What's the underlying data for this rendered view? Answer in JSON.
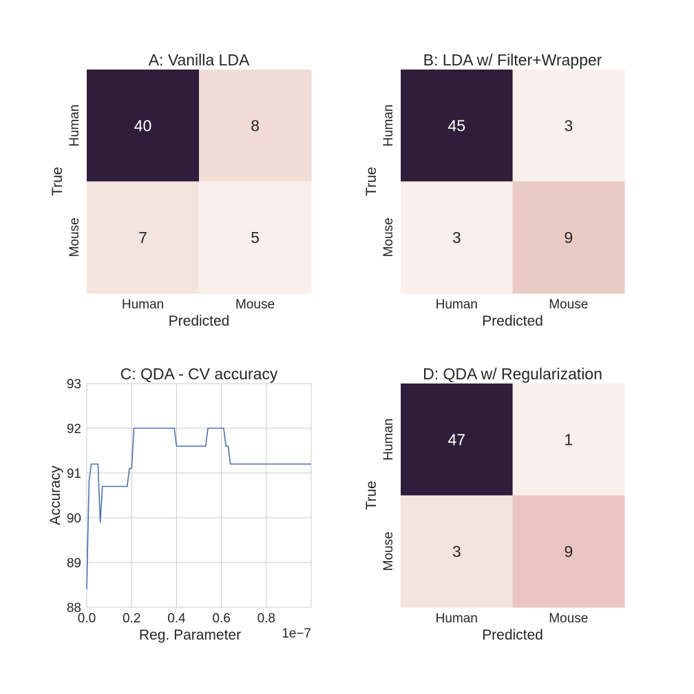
{
  "colors": {
    "dark": "#2e1e3b",
    "light": "#f9efeb",
    "line": "#4c72b0",
    "grid": "#cbcbcb",
    "text": "#262626",
    "cell_text_dark": "#ffffff",
    "cell_text_light": "#262626"
  },
  "chart_data": [
    {
      "type": "heatmap",
      "title": "A: Vanilla LDA",
      "xlabel": "Predicted",
      "ylabel": "True",
      "row_labels": [
        "Human",
        "Mouse"
      ],
      "col_labels": [
        "Human",
        "Mouse"
      ],
      "values": [
        [
          40,
          8
        ],
        [
          7,
          5
        ]
      ],
      "cell_labels": [
        [
          "40",
          "8"
        ],
        [
          "7",
          "5"
        ]
      ],
      "cell_colors": [
        [
          "#2e1e3b",
          "#f1ddd6"
        ],
        [
          "#f4e4de",
          "#f9efeb"
        ]
      ]
    },
    {
      "type": "heatmap",
      "title": "B: LDA w/ Filter+Wrapper",
      "xlabel": "Predicted",
      "ylabel": "True",
      "row_labels": [
        "Human",
        "Mouse"
      ],
      "col_labels": [
        "Human",
        "Mouse"
      ],
      "values": [
        [
          45,
          3
        ],
        [
          3,
          9
        ]
      ],
      "cell_labels": [
        [
          "45",
          "3"
        ],
        [
          "3",
          "9"
        ]
      ],
      "cell_colors": [
        [
          "#2e1e3b",
          "#f9efeb"
        ],
        [
          "#f9efeb",
          "#ebcac5"
        ]
      ]
    },
    {
      "type": "line",
      "title": "C: QDA - CV accuracy",
      "xlabel": "Reg. Parameter",
      "ylabel": "Accuracy",
      "x_offset_label": "1e−7",
      "xlim": [
        0,
        1e-07
      ],
      "ylim": [
        88,
        93
      ],
      "xticks": [
        0,
        2e-08,
        4e-08,
        6e-08,
        8e-08
      ],
      "xtick_labels": [
        "0.0",
        "0.2",
        "0.4",
        "0.6",
        "0.8"
      ],
      "yticks": [
        88,
        89,
        90,
        91,
        92,
        93
      ],
      "ytick_labels": [
        "88",
        "89",
        "90",
        "91",
        "92",
        "93"
      ],
      "grid": true,
      "series": [
        {
          "x": [
            0,
            1e-09,
            2e-09,
            3e-09,
            4e-09,
            5e-09,
            6e-09,
            7e-09,
            8e-09,
            1e-08,
            1.2e-08,
            1.4e-08,
            1.6e-08,
            1.8e-08,
            1.9e-08,
            2e-08,
            2.1e-08,
            2.5e-08,
            3e-08,
            3.5e-08,
            3.9e-08,
            4e-08,
            4.5e-08,
            5e-08,
            5.3e-08,
            5.4e-08,
            5.7e-08,
            6.1e-08,
            6.2e-08,
            6.3e-08,
            6.4e-08,
            7e-08,
            8e-08,
            9e-08,
            1e-07
          ],
          "y": [
            88.4,
            90.8,
            91.2,
            91.2,
            91.2,
            91.2,
            89.9,
            90.7,
            90.7,
            90.7,
            90.7,
            90.7,
            90.7,
            90.7,
            91.1,
            91.1,
            92.0,
            92.0,
            92.0,
            92.0,
            92.0,
            91.6,
            91.6,
            91.6,
            91.6,
            92.0,
            92.0,
            92.0,
            91.6,
            91.6,
            91.2,
            91.2,
            91.2,
            91.2,
            91.2
          ]
        }
      ]
    },
    {
      "type": "heatmap",
      "title": "D: QDA w/ Regularization",
      "xlabel": "Predicted",
      "ylabel": "True",
      "row_labels": [
        "Human",
        "Mouse"
      ],
      "col_labels": [
        "Human",
        "Mouse"
      ],
      "values": [
        [
          47,
          1
        ],
        [
          3,
          9
        ]
      ],
      "cell_labels": [
        [
          "47",
          "1"
        ],
        [
          "3",
          "9"
        ]
      ],
      "cell_colors": [
        [
          "#2e1e3b",
          "#f9efeb"
        ],
        [
          "#f4e4de",
          "#ebc5c1"
        ]
      ]
    }
  ]
}
